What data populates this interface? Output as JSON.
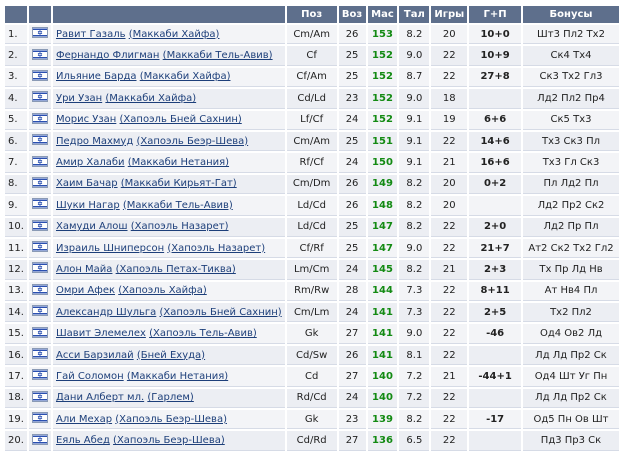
{
  "table": {
    "header": {
      "position": "Поз",
      "age": "Воз",
      "mas": "Мас",
      "tal": "Тал",
      "games": "Игры",
      "gp": "Г+П",
      "bonuses": "Бонусы"
    },
    "rows": [
      {
        "num": "1.",
        "name": "Равит Газаль",
        "club": "(Маккаби Хайфа)",
        "position": "Cm/Am",
        "age": 26,
        "mas": 153,
        "tal": "8.2",
        "games": 20,
        "gp": "10+0",
        "bonuses": "Шт3 Пл2 Тх2"
      },
      {
        "num": "2.",
        "name": "Фернандо Флигман",
        "club": "(Маккаби Тель-Авив)",
        "position": "Cf",
        "age": 25,
        "mas": 152,
        "tal": "9.0",
        "games": 22,
        "gp": "10+9",
        "bonuses": "Ск4 Тх4"
      },
      {
        "num": "3.",
        "name": "Ильяние Барда",
        "club": "(Маккаби Хайфа)",
        "position": "Cf/Am",
        "age": 25,
        "mas": 152,
        "tal": "8.7",
        "games": 22,
        "gp": "27+8",
        "bonuses": "Ск3 Тх2 Гл3"
      },
      {
        "num": "4.",
        "name": "Ури Узан",
        "club": "(Маккаби Хайфа)",
        "position": "Cd/Ld",
        "age": 23,
        "mas": 152,
        "tal": "9.0",
        "games": 18,
        "gp": null,
        "bonuses": "Лд2 Пл2 Пр4"
      },
      {
        "num": "5.",
        "name": "Морис Узан",
        "club": "(Хапоэль Бней Сахнин)",
        "position": "Lf/Cf",
        "age": 24,
        "mas": 152,
        "tal": "9.1",
        "games": 19,
        "gp": "6+6",
        "bonuses": "Ск5 Тх3"
      },
      {
        "num": "6.",
        "name": "Педро Махмуд",
        "club": "(Хапоэль Беэр-Шева)",
        "position": "Cm/Am",
        "age": 25,
        "mas": 151,
        "tal": "9.1",
        "games": 22,
        "gp": "14+6",
        "bonuses": "Тх3 Ск3 Пл"
      },
      {
        "num": "7.",
        "name": "Амир Халаби",
        "club": "(Маккаби Нетания)",
        "position": "Rf/Cf",
        "age": 24,
        "mas": 150,
        "tal": "9.1",
        "games": 21,
        "gp": "16+6",
        "bonuses": "Тх3 Гл Ск3"
      },
      {
        "num": "8.",
        "name": "Хаим Бачар",
        "club": "(Маккаби Кирьят-Гат)",
        "position": "Cm/Dm",
        "age": 26,
        "mas": 149,
        "tal": "8.2",
        "games": 20,
        "gp": "0+2",
        "bonuses": "Пл Лд2 Пл"
      },
      {
        "num": "9.",
        "name": "Шуки Нагар",
        "club": "(Маккаби Тель-Авив)",
        "position": "Ld/Cd",
        "age": 26,
        "mas": 148,
        "tal": "8.2",
        "games": 20,
        "gp": null,
        "bonuses": "Лд2 Пр2 Ск2"
      },
      {
        "num": "10.",
        "name": "Хамуди Алош",
        "club": "(Хапоэль Назарет)",
        "position": "Ld/Cd",
        "age": 25,
        "mas": 147,
        "tal": "8.2",
        "games": 22,
        "gp": "2+0",
        "bonuses": "Лд2 Пр Пл"
      },
      {
        "num": "11.",
        "name": "Израиль Шниперсон",
        "club": "(Хапоэль Назарет)",
        "position": "Cf/Rf",
        "age": 25,
        "mas": 147,
        "tal": "9.0",
        "games": 22,
        "gp": "21+7",
        "bonuses": "Ат2 Ск2 Тх2 Гл2"
      },
      {
        "num": "12.",
        "name": "Алон Майа",
        "club": "(Хапоэль Петах-Тиква)",
        "position": "Lm/Cm",
        "age": 24,
        "mas": 145,
        "tal": "8.2",
        "games": 21,
        "gp": "2+3",
        "bonuses": "Тх Пр Лд Нв"
      },
      {
        "num": "13.",
        "name": "Омри Афек",
        "club": "(Хапоэль Хайфа)",
        "position": "Rm/Rw",
        "age": 28,
        "mas": 144,
        "tal": "7.3",
        "games": 22,
        "gp": "8+11",
        "bonuses": "Ат Нв4 Пл"
      },
      {
        "num": "14.",
        "name": "Александр Шульга",
        "club": "(Хапоэль Бней Сахнин)",
        "position": "Cm/Lm",
        "age": 24,
        "mas": 141,
        "tal": "7.3",
        "games": 22,
        "gp": "2+5",
        "bonuses": "Тх2 Пл2"
      },
      {
        "num": "15.",
        "name": "Шавит Элемелех",
        "club": "(Хапоэль Тель-Авив)",
        "position": "Gk",
        "age": 27,
        "mas": 141,
        "tal": "9.0",
        "games": 22,
        "gp": "-46",
        "bonuses": "Од4 Ов2 Лд"
      },
      {
        "num": "16.",
        "name": "Асси Барзилай",
        "club": "(Бней Ехуда)",
        "position": "Cd/Sw",
        "age": 26,
        "mas": 141,
        "tal": "8.1",
        "games": 22,
        "gp": null,
        "bonuses": "Лд Лд Пр2 Ск"
      },
      {
        "num": "17.",
        "name": "Гай Соломон",
        "club": "(Маккаби Нетания)",
        "position": "Cd",
        "age": 27,
        "mas": 140,
        "tal": "7.2",
        "games": 21,
        "gp": "-44+1",
        "bonuses": "Од4 Шт Уг Пн"
      },
      {
        "num": "18.",
        "name": "Дани Алберт мл.",
        "club": "(Гарлем)",
        "position": "Rd/Cd",
        "age": 24,
        "mas": 140,
        "tal": "7.2",
        "games": 22,
        "gp": null,
        "bonuses": "Лд Лд Пр2 Ск"
      },
      {
        "num": "19.",
        "name": "Али Мехар",
        "club": "(Хапоэль Беэр-Шева)",
        "position": "Gk",
        "age": 23,
        "mas": 139,
        "tal": "8.2",
        "games": 22,
        "gp": "-17",
        "bonuses": "Од5 Пн Ов Шт"
      },
      {
        "num": "20.",
        "name": "Еяль Абед",
        "club": "(Хапоэль Беэр-Шева)",
        "position": "Cd/Rd",
        "age": 27,
        "mas": 136,
        "tal": "6.5",
        "games": 22,
        "gp": null,
        "bonuses": "Пд3 Пр3 Ск"
      }
    ]
  }
}
